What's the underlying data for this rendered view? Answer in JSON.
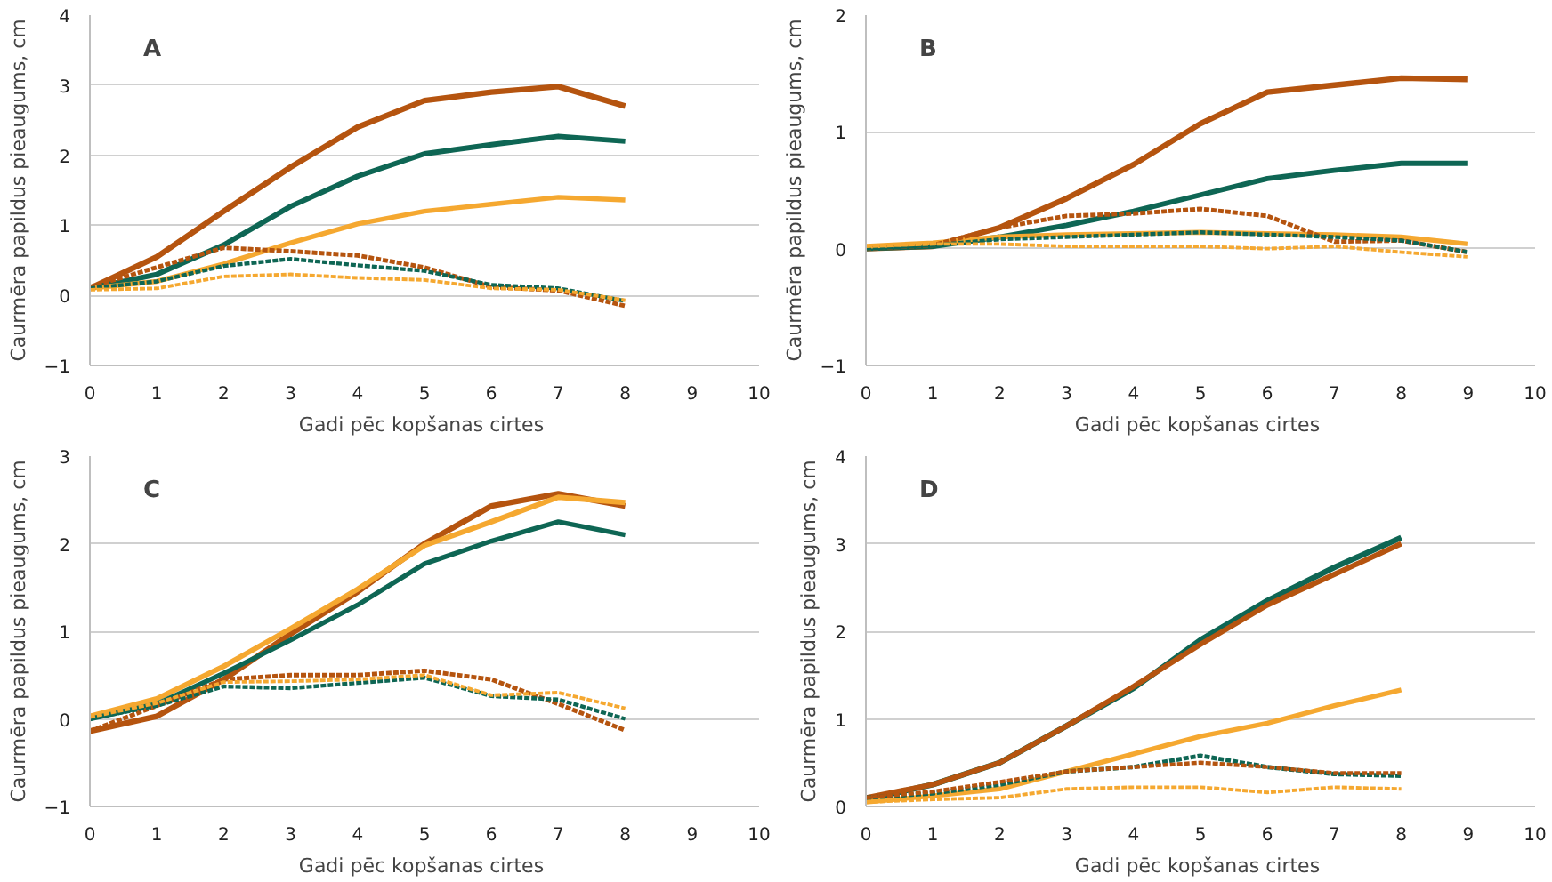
{
  "chart_data": [
    {
      "type": "line",
      "title": "A",
      "xlabel": "Gadi pēc kopšanas  cirtes",
      "ylabel": "Caurmēra papildus pieaugums, cm",
      "x": [
        0,
        1,
        2,
        3,
        4,
        5,
        6,
        7,
        8
      ],
      "xlim": [
        0,
        10
      ],
      "xticks": [
        0,
        1,
        2,
        3,
        4,
        5,
        6,
        7,
        8,
        9,
        10
      ],
      "ylim": [
        -1,
        4
      ],
      "yticks": [
        -1,
        0,
        1,
        2,
        3,
        4
      ],
      "grid": "y",
      "series": [
        {
          "color": "#b5540f",
          "line_style": "solid",
          "values": [
            0.1,
            0.55,
            1.2,
            1.83,
            2.4,
            2.78,
            2.9,
            2.98,
            2.7
          ]
        },
        {
          "color": "#0e6654",
          "line_style": "solid",
          "values": [
            0.1,
            0.3,
            0.72,
            1.27,
            1.7,
            2.02,
            2.15,
            2.27,
            2.2
          ]
        },
        {
          "color": "#f5a830",
          "line_style": "solid",
          "values": [
            0.1,
            0.2,
            0.45,
            0.75,
            1.02,
            1.2,
            1.3,
            1.4,
            1.36
          ]
        },
        {
          "color": "#b5540f",
          "line_style": "dashed",
          "values": [
            0.12,
            0.4,
            0.68,
            0.63,
            0.57,
            0.4,
            0.12,
            0.07,
            -0.15
          ]
        },
        {
          "color": "#0e6654",
          "line_style": "dashed",
          "values": [
            0.1,
            0.2,
            0.42,
            0.52,
            0.43,
            0.35,
            0.15,
            0.1,
            -0.08
          ]
        },
        {
          "color": "#f5a830",
          "line_style": "dashed",
          "values": [
            0.08,
            0.1,
            0.27,
            0.3,
            0.25,
            0.22,
            0.1,
            0.08,
            -0.07
          ]
        }
      ]
    },
    {
      "type": "line",
      "title": "B",
      "xlabel": "Gadi pēc kopšanas  cirtes",
      "ylabel": "Caurmēra papildus pieaugums, cm",
      "x": [
        0,
        1,
        2,
        3,
        4,
        5,
        6,
        7,
        8,
        9
      ],
      "xlim": [
        0,
        10
      ],
      "xticks": [
        0,
        1,
        2,
        3,
        4,
        5,
        6,
        7,
        8,
        9,
        10
      ],
      "ylim": [
        -1,
        2
      ],
      "yticks": [
        -1,
        0,
        1,
        2
      ],
      "grid": "y",
      "series": [
        {
          "color": "#b5540f",
          "line_style": "solid",
          "values": [
            0,
            0.02,
            0.18,
            0.43,
            0.72,
            1.07,
            1.34,
            1.4,
            1.46,
            1.45
          ]
        },
        {
          "color": "#0e6654",
          "line_style": "solid",
          "values": [
            0,
            0.02,
            0.1,
            0.2,
            0.32,
            0.46,
            0.6,
            0.67,
            0.73,
            0.73
          ]
        },
        {
          "color": "#f5a830",
          "line_style": "solid",
          "values": [
            0.02,
            0.05,
            0.1,
            0.12,
            0.13,
            0.14,
            0.13,
            0.12,
            0.1,
            0.04
          ]
        },
        {
          "color": "#b5540f",
          "line_style": "dashed",
          "values": [
            0,
            0.03,
            0.18,
            0.28,
            0.3,
            0.34,
            0.28,
            0.06,
            0.07,
            -0.03
          ]
        },
        {
          "color": "#0e6654",
          "line_style": "dashed",
          "values": [
            0,
            0.03,
            0.08,
            0.1,
            0.12,
            0.14,
            0.12,
            0.1,
            0.07,
            -0.03
          ]
        },
        {
          "color": "#f5a830",
          "line_style": "dashed",
          "values": [
            0.02,
            0.04,
            0.04,
            0.02,
            0.02,
            0.02,
            0.0,
            0.02,
            -0.03,
            -0.07
          ]
        }
      ]
    },
    {
      "type": "line",
      "title": "C",
      "xlabel": "Gadi pēc kopšanas  cirtes",
      "ylabel": "Caurmēra papildus pieaugums, cm",
      "x": [
        0,
        1,
        2,
        3,
        4,
        5,
        6,
        7,
        8
      ],
      "xlim": [
        0,
        10
      ],
      "xticks": [
        0,
        1,
        2,
        3,
        4,
        5,
        6,
        7,
        8,
        9,
        10
      ],
      "ylim": [
        -1,
        3
      ],
      "yticks": [
        -1,
        0,
        1,
        2,
        3
      ],
      "grid": "y",
      "series": [
        {
          "color": "#b5540f",
          "line_style": "solid",
          "values": [
            -0.14,
            0.03,
            0.45,
            0.97,
            1.45,
            2.0,
            2.43,
            2.57,
            2.43
          ]
        },
        {
          "color": "#f5a830",
          "line_style": "solid",
          "values": [
            0.03,
            0.23,
            0.6,
            1.03,
            1.48,
            1.98,
            2.25,
            2.53,
            2.47
          ]
        },
        {
          "color": "#0e6654",
          "line_style": "solid",
          "values": [
            0.0,
            0.17,
            0.52,
            0.9,
            1.3,
            1.77,
            2.03,
            2.25,
            2.1
          ]
        },
        {
          "color": "#b5540f",
          "line_style": "dashed",
          "values": [
            -0.14,
            0.15,
            0.45,
            0.5,
            0.5,
            0.55,
            0.45,
            0.17,
            -0.13
          ]
        },
        {
          "color": "#0e6654",
          "line_style": "dashed",
          "values": [
            0.0,
            0.15,
            0.37,
            0.35,
            0.41,
            0.47,
            0.26,
            0.22,
            0.0
          ]
        },
        {
          "color": "#f5a830",
          "line_style": "dashed",
          "values": [
            0.02,
            0.18,
            0.42,
            0.43,
            0.45,
            0.5,
            0.27,
            0.3,
            0.12
          ]
        }
      ]
    },
    {
      "type": "line",
      "title": "D",
      "xlabel": "Gadi pēc kopšanas  cirtes",
      "ylabel": "Caurmēra papildus pieaugums, cm",
      "x": [
        0,
        1,
        2,
        3,
        4,
        5,
        6,
        7,
        8
      ],
      "xlim": [
        0,
        10
      ],
      "xticks": [
        0,
        1,
        2,
        3,
        4,
        5,
        6,
        7,
        8,
        9,
        10
      ],
      "ylim": [
        0,
        4
      ],
      "yticks": [
        0,
        1,
        2,
        3,
        4
      ],
      "grid": "y",
      "series": [
        {
          "color": "#0e6654",
          "line_style": "solid",
          "values": [
            0.08,
            0.25,
            0.5,
            0.92,
            1.35,
            1.9,
            2.35,
            2.73,
            3.07
          ]
        },
        {
          "color": "#b5540f",
          "line_style": "solid",
          "values": [
            0.1,
            0.25,
            0.5,
            0.92,
            1.37,
            1.85,
            2.3,
            2.65,
            3.0
          ]
        },
        {
          "color": "#f5a830",
          "line_style": "solid",
          "values": [
            0.05,
            0.12,
            0.2,
            0.4,
            0.6,
            0.8,
            0.95,
            1.15,
            1.33
          ]
        },
        {
          "color": "#0e6654",
          "line_style": "dashed",
          "values": [
            0.1,
            0.15,
            0.25,
            0.4,
            0.45,
            0.58,
            0.45,
            0.37,
            0.35
          ]
        },
        {
          "color": "#b5540f",
          "line_style": "dashed",
          "values": [
            0.1,
            0.17,
            0.28,
            0.4,
            0.45,
            0.5,
            0.45,
            0.38,
            0.38
          ]
        },
        {
          "color": "#f5a830",
          "line_style": "dashed",
          "values": [
            0.05,
            0.08,
            0.1,
            0.2,
            0.22,
            0.22,
            0.16,
            0.22,
            0.2
          ]
        }
      ]
    }
  ]
}
